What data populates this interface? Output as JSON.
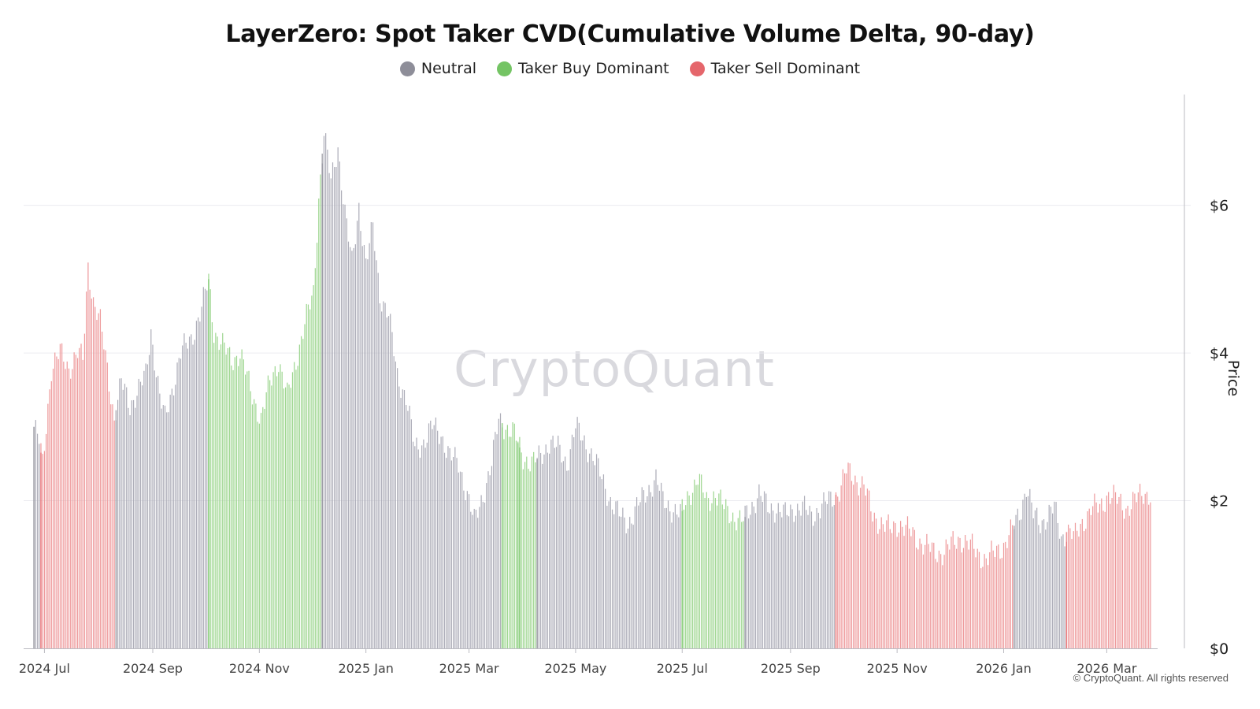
{
  "chart_data": {
    "type": "bar",
    "title": "LayerZero: Spot Taker CVD(Cumulative Volume Delta, 90-day)",
    "ylabel": "Price",
    "ylim": [
      0,
      7.5
    ],
    "yticks": [
      0,
      2,
      4,
      6
    ],
    "ytick_labels": [
      "$0",
      "$2",
      "$4",
      "$6"
    ],
    "xticks": [
      {
        "day": 6,
        "label": "2024 Jul"
      },
      {
        "day": 68,
        "label": "2024 Sep"
      },
      {
        "day": 129,
        "label": "2024 Nov"
      },
      {
        "day": 190,
        "label": "2025 Jan"
      },
      {
        "day": 249,
        "label": "2025 Mar"
      },
      {
        "day": 310,
        "label": "2025 May"
      },
      {
        "day": 371,
        "label": "2025 Jul"
      },
      {
        "day": 433,
        "label": "2025 Sep"
      },
      {
        "day": 494,
        "label": "2025 Nov"
      },
      {
        "day": 555,
        "label": "2026 Jan"
      },
      {
        "day": 614,
        "label": "2026 Mar"
      }
    ],
    "total_days": 640,
    "categories": [
      "Neutral",
      "Taker Buy Dominant",
      "Taker Sell Dominant"
    ],
    "colors": {
      "Neutral": "#8e8e99",
      "Taker Buy Dominant": "#74c464",
      "Taker Sell Dominant": "#e5666b"
    },
    "bar_colors": {
      "Neutral": "#adadb8",
      "Taker Buy Dominant": "#9ed690",
      "Taker Sell Dominant": "#ee9a9c"
    },
    "segments": [
      {
        "start": 0,
        "end": 3,
        "state": "Neutral"
      },
      {
        "start": 4,
        "end": 46,
        "state": "Taker Sell Dominant"
      },
      {
        "start": 47,
        "end": 99,
        "state": "Neutral"
      },
      {
        "start": 100,
        "end": 164,
        "state": "Taker Buy Dominant"
      },
      {
        "start": 165,
        "end": 267,
        "state": "Neutral"
      },
      {
        "start": 268,
        "end": 276,
        "state": "Taker Buy Dominant"
      },
      {
        "start": 277,
        "end": 277,
        "state": "Taker Buy Dominant"
      },
      {
        "start": 278,
        "end": 287,
        "state": "Taker Buy Dominant"
      },
      {
        "start": 288,
        "end": 370,
        "state": "Neutral"
      },
      {
        "start": 371,
        "end": 406,
        "state": "Taker Buy Dominant"
      },
      {
        "start": 407,
        "end": 458,
        "state": "Neutral"
      },
      {
        "start": 459,
        "end": 560,
        "state": "Taker Sell Dominant"
      },
      {
        "start": 561,
        "end": 590,
        "state": "Neutral"
      },
      {
        "start": 591,
        "end": 639,
        "state": "Taker Sell Dominant"
      }
    ],
    "price_anchors": [
      [
        0,
        3.0
      ],
      [
        3,
        2.8
      ],
      [
        5,
        2.5
      ],
      [
        10,
        3.8
      ],
      [
        15,
        4.0
      ],
      [
        20,
        3.8
      ],
      [
        25,
        4.0
      ],
      [
        28,
        3.9
      ],
      [
        31,
        5.2
      ],
      [
        34,
        4.7
      ],
      [
        38,
        4.4
      ],
      [
        42,
        3.8
      ],
      [
        46,
        3.1
      ],
      [
        50,
        3.6
      ],
      [
        55,
        3.3
      ],
      [
        60,
        3.5
      ],
      [
        64,
        3.7
      ],
      [
        67,
        4.3
      ],
      [
        72,
        3.4
      ],
      [
        75,
        3.1
      ],
      [
        79,
        3.5
      ],
      [
        84,
        4.0
      ],
      [
        90,
        4.2
      ],
      [
        96,
        4.6
      ],
      [
        100,
        5.0
      ],
      [
        103,
        4.3
      ],
      [
        108,
        4.1
      ],
      [
        113,
        3.9
      ],
      [
        118,
        4.0
      ],
      [
        124,
        3.5
      ],
      [
        130,
        3.1
      ],
      [
        135,
        3.6
      ],
      [
        140,
        3.9
      ],
      [
        145,
        3.4
      ],
      [
        150,
        3.9
      ],
      [
        155,
        4.4
      ],
      [
        160,
        4.8
      ],
      [
        163,
        6.1
      ],
      [
        166,
        7.0
      ],
      [
        170,
        6.3
      ],
      [
        174,
        6.8
      ],
      [
        178,
        5.9
      ],
      [
        182,
        5.2
      ],
      [
        186,
        6.0
      ],
      [
        190,
        5.2
      ],
      [
        194,
        5.7
      ],
      [
        198,
        4.8
      ],
      [
        203,
        4.5
      ],
      [
        208,
        3.7
      ],
      [
        213,
        3.4
      ],
      [
        218,
        2.7
      ],
      [
        223,
        2.8
      ],
      [
        228,
        3.0
      ],
      [
        233,
        2.9
      ],
      [
        238,
        2.6
      ],
      [
        243,
        2.5
      ],
      [
        248,
        2.1
      ],
      [
        252,
        1.7
      ],
      [
        256,
        2.0
      ],
      [
        262,
        2.5
      ],
      [
        266,
        3.1
      ],
      [
        270,
        3.0
      ],
      [
        275,
        2.9
      ],
      [
        280,
        2.6
      ],
      [
        285,
        2.5
      ],
      [
        290,
        2.6
      ],
      [
        295,
        2.8
      ],
      [
        300,
        2.7
      ],
      [
        305,
        2.5
      ],
      [
        310,
        3.0
      ],
      [
        315,
        2.8
      ],
      [
        320,
        2.6
      ],
      [
        325,
        2.3
      ],
      [
        330,
        2.0
      ],
      [
        335,
        1.8
      ],
      [
        340,
        1.7
      ],
      [
        345,
        1.9
      ],
      [
        350,
        2.1
      ],
      [
        356,
        2.3
      ],
      [
        360,
        2.0
      ],
      [
        365,
        1.9
      ],
      [
        370,
        1.8
      ],
      [
        375,
        2.1
      ],
      [
        380,
        2.3
      ],
      [
        385,
        2.0
      ],
      [
        390,
        2.1
      ],
      [
        395,
        1.9
      ],
      [
        400,
        1.8
      ],
      [
        405,
        1.7
      ],
      [
        410,
        1.9
      ],
      [
        415,
        2.1
      ],
      [
        420,
        1.9
      ],
      [
        425,
        1.9
      ],
      [
        430,
        1.8
      ],
      [
        435,
        1.9
      ],
      [
        440,
        1.9
      ],
      [
        445,
        1.8
      ],
      [
        450,
        1.9
      ],
      [
        455,
        2.0
      ],
      [
        460,
        2.1
      ],
      [
        465,
        2.4
      ],
      [
        470,
        2.3
      ],
      [
        475,
        2.2
      ],
      [
        480,
        1.8
      ],
      [
        485,
        1.7
      ],
      [
        490,
        1.6
      ],
      [
        495,
        1.7
      ],
      [
        500,
        1.6
      ],
      [
        505,
        1.5
      ],
      [
        510,
        1.4
      ],
      [
        515,
        1.3
      ],
      [
        520,
        1.3
      ],
      [
        525,
        1.4
      ],
      [
        530,
        1.5
      ],
      [
        535,
        1.4
      ],
      [
        540,
        1.3
      ],
      [
        545,
        1.2
      ],
      [
        550,
        1.3
      ],
      [
        555,
        1.4
      ],
      [
        560,
        1.6
      ],
      [
        565,
        1.9
      ],
      [
        568,
        2.2
      ],
      [
        572,
        1.8
      ],
      [
        576,
        1.7
      ],
      [
        580,
        1.8
      ],
      [
        584,
        1.9
      ],
      [
        588,
        1.5
      ],
      [
        592,
        1.6
      ],
      [
        596,
        1.5
      ],
      [
        600,
        1.7
      ],
      [
        605,
        1.9
      ],
      [
        610,
        1.9
      ],
      [
        615,
        2.1
      ],
      [
        620,
        2.0
      ],
      [
        625,
        1.9
      ],
      [
        630,
        2.0
      ],
      [
        635,
        2.1
      ],
      [
        639,
        2.1
      ]
    ]
  },
  "legend": {
    "items": [
      {
        "label": "Neutral",
        "color": "#8e8e99"
      },
      {
        "label": "Taker Buy Dominant",
        "color": "#74c464"
      },
      {
        "label": "Taker Sell Dominant",
        "color": "#e5666b"
      }
    ]
  },
  "watermark": "CryptoQuant",
  "copyright": "© CryptoQuant. All rights reserved"
}
